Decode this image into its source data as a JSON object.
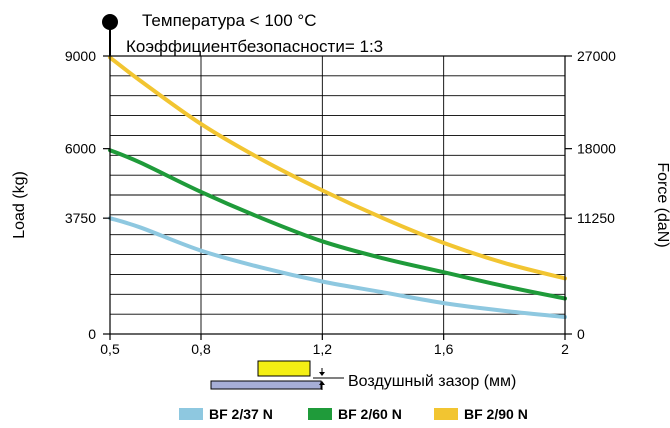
{
  "chart_data": {
    "type": "line",
    "annotations": [
      "Температура < 100 °C",
      "Коэффициентбезопасности= 1:3"
    ],
    "ylabel": "Load (kg)",
    "y2label": "Force (daN)",
    "xlabel": "Воздушный зазор (мм)",
    "xlim": [
      0.5,
      2.0
    ],
    "ylim": [
      0,
      9000
    ],
    "y2lim": [
      0,
      27000
    ],
    "xticks": [
      0.5,
      0.8,
      1.2,
      1.6,
      2.0
    ],
    "xtick_labels": [
      "0,5",
      "0,8",
      "1,2",
      "1,6",
      "2"
    ],
    "yticks": [
      0,
      3750,
      6000,
      9000
    ],
    "ytick_labels": [
      "0",
      "3750",
      "6000",
      "9000"
    ],
    "y2ticks": [
      0,
      11250,
      18000,
      27000
    ],
    "y2tick_labels": [
      "0",
      "11250",
      "18000",
      "27000"
    ],
    "grid": true,
    "legend_position": "bottom",
    "series": [
      {
        "name": "BF 2/37 N",
        "color": "#8ec8e0",
        "x": [
          0.5,
          0.6,
          0.8,
          1.0,
          1.2,
          1.4,
          1.6,
          1.8,
          2.0
        ],
        "y": [
          3750,
          3450,
          2700,
          2150,
          1700,
          1350,
          1000,
          750,
          550
        ]
      },
      {
        "name": "BF 2/60 N",
        "color": "#1f9b3a",
        "x": [
          0.5,
          0.6,
          0.8,
          1.0,
          1.2,
          1.4,
          1.6,
          1.8,
          2.0
        ],
        "y": [
          5950,
          5550,
          4600,
          3750,
          3000,
          2450,
          2000,
          1550,
          1150
        ]
      },
      {
        "name": "BF 2/90 N",
        "color": "#f2c531",
        "x": [
          0.5,
          0.6,
          0.8,
          1.0,
          1.2,
          1.4,
          1.6,
          1.8,
          2.0
        ],
        "y": [
          8950,
          8200,
          6800,
          5650,
          4650,
          3750,
          2950,
          2300,
          1800
        ]
      }
    ]
  }
}
